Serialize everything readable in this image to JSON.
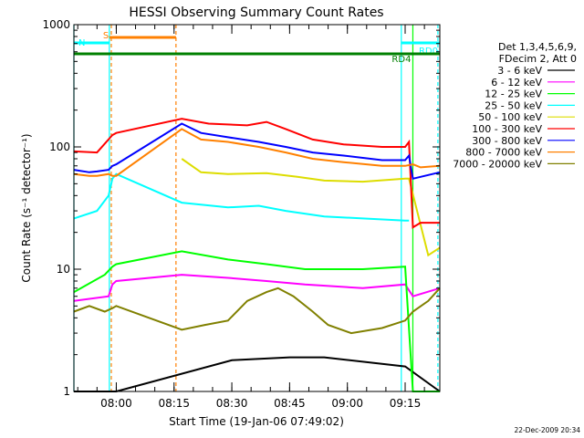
{
  "chart_data": {
    "type": "line",
    "title": "HESSI Observing Summary Count Rates",
    "xlabel": "Start Time (19-Jan-06 07:49:02)",
    "ylabel": "Count Rate (s⁻¹ detector⁻¹)",
    "y_scale": "log",
    "ylim": [
      1,
      1000
    ],
    "xlim_minutes_after_start": [
      0,
      95
    ],
    "x_ticks": [
      {
        "label": "08:00",
        "t": 11
      },
      {
        "label": "08:15",
        "t": 26
      },
      {
        "label": "08:30",
        "t": 41
      },
      {
        "label": "08:45",
        "t": 56
      },
      {
        "label": "09:00",
        "t": 71
      },
      {
        "label": "09:15",
        "t": 86
      }
    ],
    "y_ticks": [
      {
        "label": "1",
        "v": 1
      },
      {
        "label": "10",
        "v": 10
      },
      {
        "label": "100",
        "v": 100
      },
      {
        "label": "1000",
        "v": 1000
      }
    ],
    "legend_header": [
      "Det 1,3,4,5,6,9,",
      "FDecim 2, Att 0"
    ],
    "legend_position": "right",
    "series": [
      {
        "name": "3 - 6 keV",
        "color": "#000000",
        "points": [
          [
            0,
            1
          ],
          [
            11,
            1
          ],
          [
            41,
            1.8
          ],
          [
            56,
            1.9
          ],
          [
            65,
            1.9
          ],
          [
            86,
            1.6
          ],
          [
            95,
            1
          ]
        ]
      },
      {
        "name": "6 - 12 keV",
        "color": "#ff00ff",
        "points": [
          [
            0,
            5.5
          ],
          [
            9,
            6
          ],
          [
            10,
            7.5
          ],
          [
            11,
            8
          ],
          [
            28,
            9
          ],
          [
            40,
            8.5
          ],
          [
            50,
            8
          ],
          [
            60,
            7.5
          ],
          [
            75,
            7
          ],
          [
            86,
            7.5
          ],
          [
            88,
            6
          ],
          [
            95,
            7
          ]
        ]
      },
      {
        "name": "12 - 25 keV",
        "color": "#00ff00",
        "points": [
          [
            0,
            6.5
          ],
          [
            8,
            9
          ],
          [
            10,
            10.5
          ],
          [
            11,
            11
          ],
          [
            28,
            14
          ],
          [
            40,
            12
          ],
          [
            50,
            11
          ],
          [
            60,
            10
          ],
          [
            75,
            10
          ],
          [
            86,
            10.5
          ],
          [
            88,
            1
          ],
          [
            95,
            1
          ]
        ]
      },
      {
        "name": "25 - 50 keV",
        "color": "#00ffff",
        "points": [
          [
            0,
            26
          ],
          [
            6,
            30
          ],
          [
            9,
            40
          ],
          [
            10,
            55
          ],
          [
            11,
            60
          ],
          [
            28,
            35
          ],
          [
            40,
            32
          ],
          [
            48,
            33
          ],
          [
            55,
            30
          ],
          [
            65,
            27
          ],
          [
            75,
            26
          ],
          [
            86,
            25
          ],
          [
            87,
            25
          ]
        ]
      },
      {
        "name": "50 - 100 keV",
        "color": "#dddd00",
        "points": [
          [
            28,
            80
          ],
          [
            33,
            62
          ],
          [
            40,
            60
          ],
          [
            50,
            61
          ],
          [
            58,
            57
          ],
          [
            65,
            53
          ],
          [
            75,
            52
          ],
          [
            86,
            55
          ],
          [
            87,
            55
          ],
          [
            92,
            13
          ],
          [
            95,
            15
          ]
        ]
      },
      {
        "name": "100 - 300 keV",
        "color": "#ff0000",
        "points": [
          [
            0,
            92
          ],
          [
            6,
            90
          ],
          [
            10,
            125
          ],
          [
            11,
            130
          ],
          [
            28,
            170
          ],
          [
            35,
            155
          ],
          [
            45,
            150
          ],
          [
            50,
            160
          ],
          [
            55,
            140
          ],
          [
            62,
            115
          ],
          [
            70,
            105
          ],
          [
            80,
            100
          ],
          [
            86,
            100
          ],
          [
            87,
            110
          ],
          [
            88,
            22
          ],
          [
            90,
            24
          ],
          [
            95,
            24
          ]
        ]
      },
      {
        "name": "300 - 800 keV",
        "color": "#0000ff",
        "points": [
          [
            0,
            65
          ],
          [
            4,
            62
          ],
          [
            6,
            63
          ],
          [
            9,
            65
          ],
          [
            10,
            70
          ],
          [
            11,
            72
          ],
          [
            28,
            155
          ],
          [
            33,
            130
          ],
          [
            40,
            120
          ],
          [
            48,
            110
          ],
          [
            55,
            100
          ],
          [
            62,
            90
          ],
          [
            70,
            85
          ],
          [
            80,
            78
          ],
          [
            86,
            78
          ],
          [
            87,
            85
          ],
          [
            88,
            55
          ],
          [
            95,
            62
          ]
        ]
      },
      {
        "name": "800 - 7000 keV",
        "color": "#ff8000",
        "points": [
          [
            0,
            60
          ],
          [
            4,
            58
          ],
          [
            6,
            58
          ],
          [
            9,
            60
          ],
          [
            10,
            58
          ],
          [
            11,
            58
          ],
          [
            28,
            140
          ],
          [
            33,
            115
          ],
          [
            40,
            110
          ],
          [
            48,
            100
          ],
          [
            55,
            90
          ],
          [
            62,
            80
          ],
          [
            70,
            75
          ],
          [
            80,
            70
          ],
          [
            86,
            70
          ],
          [
            88,
            72
          ],
          [
            90,
            68
          ],
          [
            95,
            70
          ]
        ]
      },
      {
        "name": "7000 - 20000 keV",
        "color": "#808000",
        "points": [
          [
            0,
            4.5
          ],
          [
            4,
            5
          ],
          [
            8,
            4.5
          ],
          [
            10,
            4.8
          ],
          [
            11,
            5
          ],
          [
            28,
            3.2
          ],
          [
            34,
            3.5
          ],
          [
            40,
            3.8
          ],
          [
            45,
            5.5
          ],
          [
            50,
            6.5
          ],
          [
            53,
            7
          ],
          [
            57,
            6
          ],
          [
            62,
            4.5
          ],
          [
            66,
            3.5
          ],
          [
            72,
            3
          ],
          [
            80,
            3.3
          ],
          [
            86,
            3.8
          ],
          [
            88,
            4.5
          ],
          [
            92,
            5.5
          ],
          [
            95,
            7
          ]
        ]
      }
    ],
    "status_flags": [
      {
        "label": "S",
        "color": "#ff8000",
        "start": 9.2,
        "end": 26.5
      },
      {
        "label": "N",
        "color": "#00ffff",
        "start": 0,
        "end": 9.2
      },
      {
        "label": "RD0",
        "color": "#00ffff",
        "start": 85,
        "end": 95
      },
      {
        "label": "RD4",
        "color": "#008000",
        "start": 0,
        "end": 95
      }
    ],
    "event_markers": [
      {
        "color": "#00ffff",
        "t": 0,
        "style": "solid"
      },
      {
        "color": "#00ffff",
        "t": 9.2,
        "style": "solid"
      },
      {
        "color": "#ff8000",
        "t": 9.7,
        "style": "dashed"
      },
      {
        "color": "#ff8000",
        "t": 26.5,
        "style": "dashed"
      },
      {
        "color": "#00ffff",
        "t": 85,
        "style": "solid"
      },
      {
        "color": "#00ff00",
        "t": 88,
        "style": "solid"
      },
      {
        "color": "#00ffff",
        "t": 94.5,
        "style": "dashed"
      }
    ]
  },
  "footer": {
    "timestamp": "22-Dec-2009 20:34"
  }
}
